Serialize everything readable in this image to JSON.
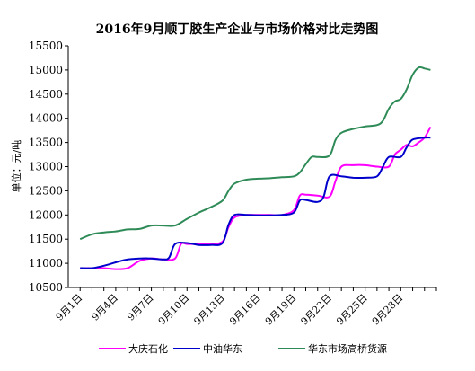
{
  "chart_data": {
    "type": "line",
    "title": "2016年9月顺丁胶生产企业与市场价格对比走势图",
    "ylabel": "单位：元/吨",
    "xlabel": "",
    "ylim": [
      10500,
      15500
    ],
    "yticks": [
      10500,
      11000,
      11500,
      12000,
      12500,
      13000,
      13500,
      14000,
      14500,
      15000,
      15500
    ],
    "xlim": [
      0,
      31
    ],
    "xticks": [
      {
        "x": 1,
        "label": "9月1日"
      },
      {
        "x": 4,
        "label": "9月4日"
      },
      {
        "x": 7,
        "label": "9月7日"
      },
      {
        "x": 10,
        "label": "9月10日"
      },
      {
        "x": 13,
        "label": "9月13日"
      },
      {
        "x": 16,
        "label": "9月16日"
      },
      {
        "x": 19,
        "label": "9月19日"
      },
      {
        "x": 22,
        "label": "9月22日"
      },
      {
        "x": 25,
        "label": "9月25日"
      },
      {
        "x": 28,
        "label": "9月28日"
      }
    ],
    "grid": false,
    "legend_position": "bottom",
    "series": [
      {
        "name": "大庆石化",
        "color": "#ff00ff",
        "points": [
          [
            1,
            10900
          ],
          [
            2,
            10900
          ],
          [
            3,
            10900
          ],
          [
            4,
            10880
          ],
          [
            5,
            10900
          ],
          [
            6,
            11050
          ],
          [
            7,
            11100
          ],
          [
            8,
            11080
          ],
          [
            9,
            11100
          ],
          [
            9.5,
            11400
          ],
          [
            10,
            11400
          ],
          [
            11,
            11400
          ],
          [
            12,
            11400
          ],
          [
            13,
            11450
          ],
          [
            13.5,
            11750
          ],
          [
            14,
            11950
          ],
          [
            15,
            12000
          ],
          [
            16,
            12000
          ],
          [
            17,
            12000
          ],
          [
            18,
            12000
          ],
          [
            19,
            12100
          ],
          [
            19.5,
            12400
          ],
          [
            20,
            12420
          ],
          [
            21,
            12400
          ],
          [
            22,
            12380
          ],
          [
            22.5,
            12700
          ],
          [
            23,
            13000
          ],
          [
            24,
            13030
          ],
          [
            25,
            13030
          ],
          [
            26,
            13000
          ],
          [
            27,
            13000
          ],
          [
            27.5,
            13250
          ],
          [
            28,
            13350
          ],
          [
            28.5,
            13450
          ],
          [
            29,
            13420
          ],
          [
            29.5,
            13500
          ],
          [
            30,
            13600
          ],
          [
            30.5,
            13820
          ]
        ]
      },
      {
        "name": "中油华东",
        "color": "#0000cc",
        "points": [
          [
            1,
            10900
          ],
          [
            2,
            10900
          ],
          [
            3,
            10950
          ],
          [
            4,
            11020
          ],
          [
            5,
            11080
          ],
          [
            6,
            11100
          ],
          [
            7,
            11100
          ],
          [
            8,
            11080
          ],
          [
            8.5,
            11120
          ],
          [
            9,
            11400
          ],
          [
            10,
            11420
          ],
          [
            11,
            11380
          ],
          [
            12,
            11380
          ],
          [
            13,
            11420
          ],
          [
            13.5,
            11800
          ],
          [
            14,
            12000
          ],
          [
            15,
            12000
          ],
          [
            16,
            11990
          ],
          [
            17,
            11990
          ],
          [
            18,
            12000
          ],
          [
            19,
            12050
          ],
          [
            19.5,
            12300
          ],
          [
            20,
            12310
          ],
          [
            21,
            12270
          ],
          [
            21.5,
            12380
          ],
          [
            22,
            12800
          ],
          [
            23,
            12800
          ],
          [
            24,
            12770
          ],
          [
            25,
            12770
          ],
          [
            26,
            12800
          ],
          [
            26.5,
            13000
          ],
          [
            27,
            13200
          ],
          [
            28,
            13200
          ],
          [
            28.5,
            13400
          ],
          [
            29,
            13560
          ],
          [
            30,
            13600
          ],
          [
            30.5,
            13600
          ]
        ]
      },
      {
        "name": "华东市场高桥货源",
        "color": "#2e8b57",
        "points": [
          [
            1,
            11500
          ],
          [
            2,
            11600
          ],
          [
            3,
            11640
          ],
          [
            4,
            11660
          ],
          [
            5,
            11700
          ],
          [
            6,
            11710
          ],
          [
            7,
            11780
          ],
          [
            8,
            11780
          ],
          [
            9,
            11780
          ],
          [
            10,
            11920
          ],
          [
            11,
            12050
          ],
          [
            12,
            12160
          ],
          [
            13,
            12300
          ],
          [
            13.5,
            12500
          ],
          [
            14,
            12650
          ],
          [
            15,
            12730
          ],
          [
            16,
            12750
          ],
          [
            17,
            12760
          ],
          [
            18,
            12780
          ],
          [
            19,
            12800
          ],
          [
            19.5,
            12880
          ],
          [
            20,
            13050
          ],
          [
            20.5,
            13200
          ],
          [
            21,
            13200
          ],
          [
            22,
            13230
          ],
          [
            22.5,
            13550
          ],
          [
            23,
            13700
          ],
          [
            24,
            13780
          ],
          [
            25,
            13830
          ],
          [
            26,
            13860
          ],
          [
            26.5,
            13950
          ],
          [
            27,
            14200
          ],
          [
            27.5,
            14350
          ],
          [
            28,
            14400
          ],
          [
            28.5,
            14600
          ],
          [
            29,
            14900
          ],
          [
            29.5,
            15050
          ],
          [
            30,
            15030
          ],
          [
            30.5,
            15000
          ]
        ]
      }
    ]
  }
}
